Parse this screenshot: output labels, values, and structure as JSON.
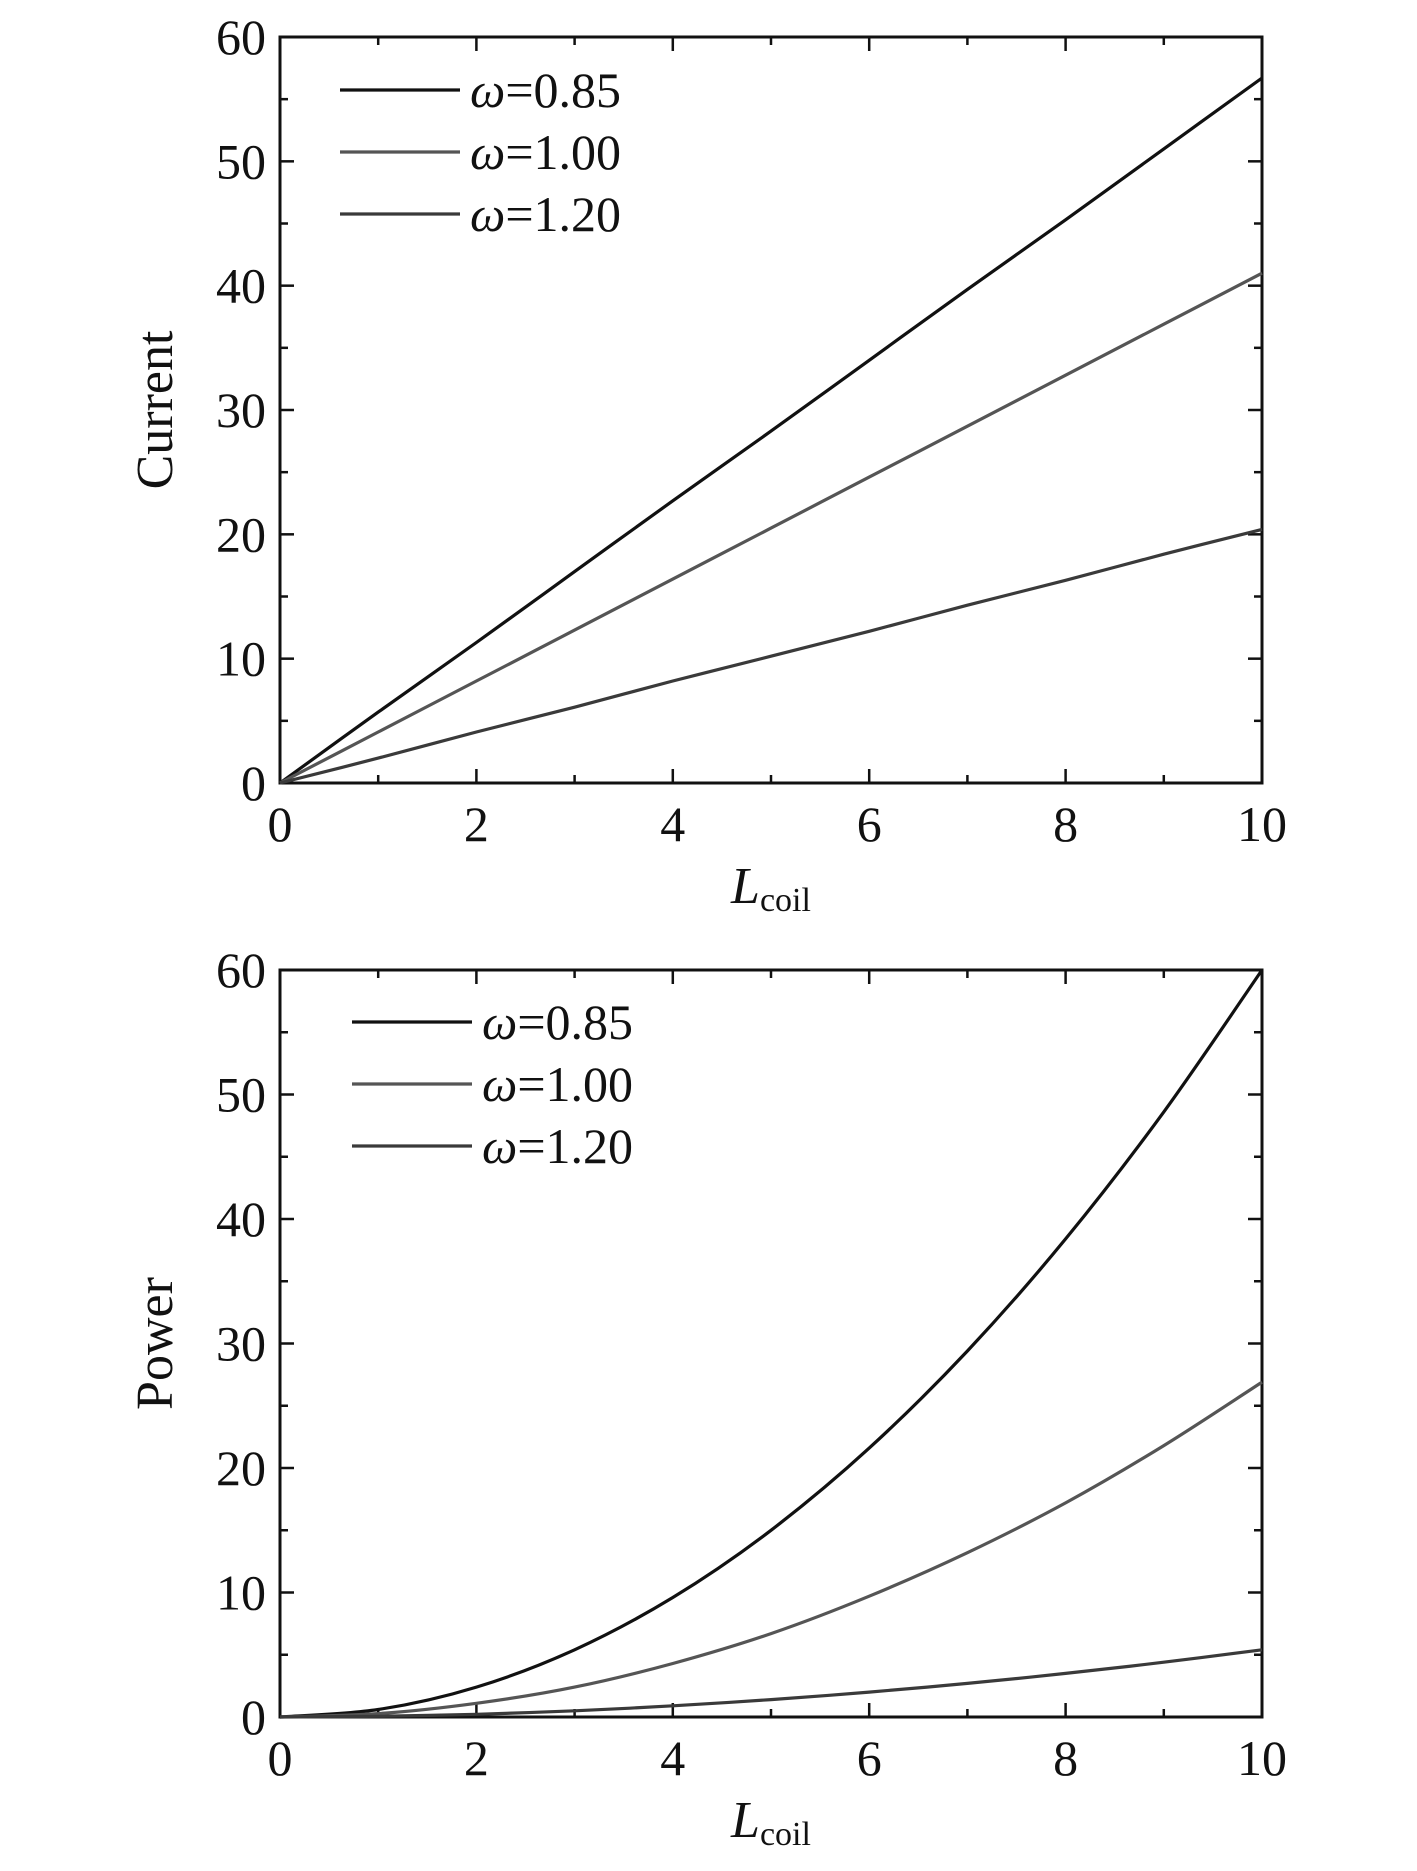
{
  "chart_data": [
    {
      "type": "line",
      "title": "",
      "xlabel": "L",
      "xlabel_sub": "coil",
      "ylabel": "Current",
      "xlim": [
        0,
        10
      ],
      "ylim": [
        0,
        60
      ],
      "x_ticks": [
        "0",
        "2",
        "4",
        "6",
        "8",
        "10"
      ],
      "y_ticks": [
        "0",
        "10",
        "20",
        "30",
        "40",
        "50",
        "60"
      ],
      "legend_position": "top-left",
      "grid": false,
      "x": [
        0,
        1,
        2,
        3,
        4,
        5,
        6,
        7,
        8,
        9,
        10
      ],
      "series": [
        {
          "name": "=0.85",
          "symbol": "ω",
          "color": "#111111",
          "values": [
            0,
            5.7,
            11.3,
            17.0,
            22.7,
            28.3,
            34.0,
            39.7,
            45.3,
            51.0,
            56.7
          ]
        },
        {
          "name": "=1.00",
          "symbol": "ω",
          "color": "#555555",
          "values": [
            0,
            4.1,
            8.2,
            12.3,
            16.4,
            20.5,
            24.6,
            28.7,
            32.8,
            36.9,
            41.0
          ]
        },
        {
          "name": "=1.20",
          "symbol": "ω",
          "color": "#3a3a3a",
          "values": [
            0,
            2.0,
            4.1,
            6.1,
            8.2,
            10.2,
            12.2,
            14.3,
            16.3,
            18.4,
            20.4
          ]
        }
      ]
    },
    {
      "type": "line",
      "title": "",
      "xlabel": "L",
      "xlabel_sub": "coil",
      "ylabel": "Power",
      "xlim": [
        0,
        10
      ],
      "ylim": [
        0,
        60
      ],
      "x_ticks": [
        "0",
        "2",
        "4",
        "6",
        "8",
        "10"
      ],
      "y_ticks": [
        "0",
        "10",
        "20",
        "30",
        "40",
        "50",
        "60"
      ],
      "legend_position": "top-left",
      "grid": false,
      "x": [
        0,
        1,
        2,
        3,
        4,
        5,
        6,
        7,
        8,
        9,
        10
      ],
      "series": [
        {
          "name": "=0.85",
          "symbol": "ω",
          "color": "#111111",
          "values": [
            0,
            0.6,
            2.4,
            5.4,
            9.6,
            15.0,
            21.6,
            29.4,
            38.4,
            48.6,
            60.0
          ]
        },
        {
          "name": "=1.00",
          "symbol": "ω",
          "color": "#555555",
          "values": [
            0,
            0.27,
            1.1,
            2.4,
            4.3,
            6.7,
            9.7,
            13.2,
            17.2,
            21.8,
            26.9
          ]
        },
        {
          "name": "=1.20",
          "symbol": "ω",
          "color": "#3a3a3a",
          "values": [
            0,
            0.06,
            0.22,
            0.5,
            0.9,
            1.4,
            2.0,
            2.7,
            3.5,
            4.4,
            5.4
          ]
        }
      ]
    }
  ]
}
